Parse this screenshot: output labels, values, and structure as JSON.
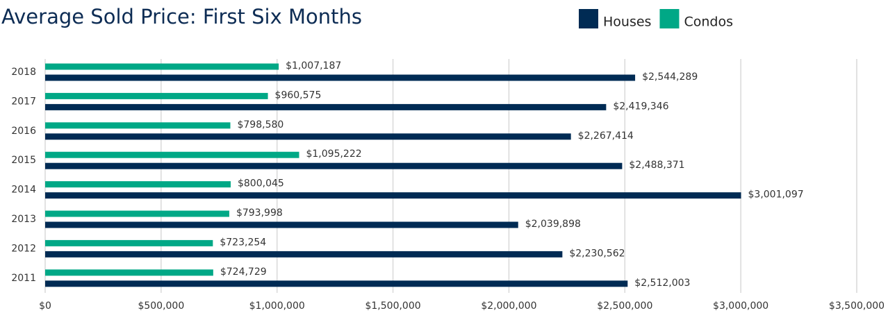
{
  "chart_data": {
    "type": "hbar",
    "title": "Average Sold Price: First Six Months",
    "categories": [
      "2018",
      "2017",
      "2016",
      "2015",
      "2014",
      "2013",
      "2012",
      "2011"
    ],
    "series": [
      {
        "name": "Houses",
        "color": "#002b54",
        "values": [
          2544289,
          2419346,
          2267414,
          2488371,
          3001097,
          2039898,
          2230562,
          2512003
        ],
        "value_labels": [
          "$2,544,289",
          "$2,419,346",
          "$2,267,414",
          "$2,488,371",
          "$3,001,097",
          "$2,039,898",
          "$2,230,562",
          "$2,512,003"
        ]
      },
      {
        "name": "Condos",
        "color": "#00a886",
        "values": [
          1007187,
          960575,
          798580,
          1095222,
          800045,
          793998,
          723254,
          724729
        ],
        "value_labels": [
          "$1,007,187",
          "$960,575",
          "$798,580",
          "$1,095,222",
          "$800,045",
          "$793,998",
          "$723,254",
          "$724,729"
        ]
      }
    ],
    "xlim": [
      0,
      3500000
    ],
    "xticks": [
      {
        "value": 0,
        "label": "$0"
      },
      {
        "value": 500000,
        "label": "$500,000"
      },
      {
        "value": 1000000,
        "label": "$1,000,000"
      },
      {
        "value": 1500000,
        "label": "$1,500,000"
      },
      {
        "value": 2000000,
        "label": "$2,000,000"
      },
      {
        "value": 2500000,
        "label": "$2,500,000"
      },
      {
        "value": 3000000,
        "label": "$3,000,000"
      },
      {
        "value": 3500000,
        "label": "$3,500,000"
      }
    ],
    "grid": true,
    "legend": "top-right"
  }
}
